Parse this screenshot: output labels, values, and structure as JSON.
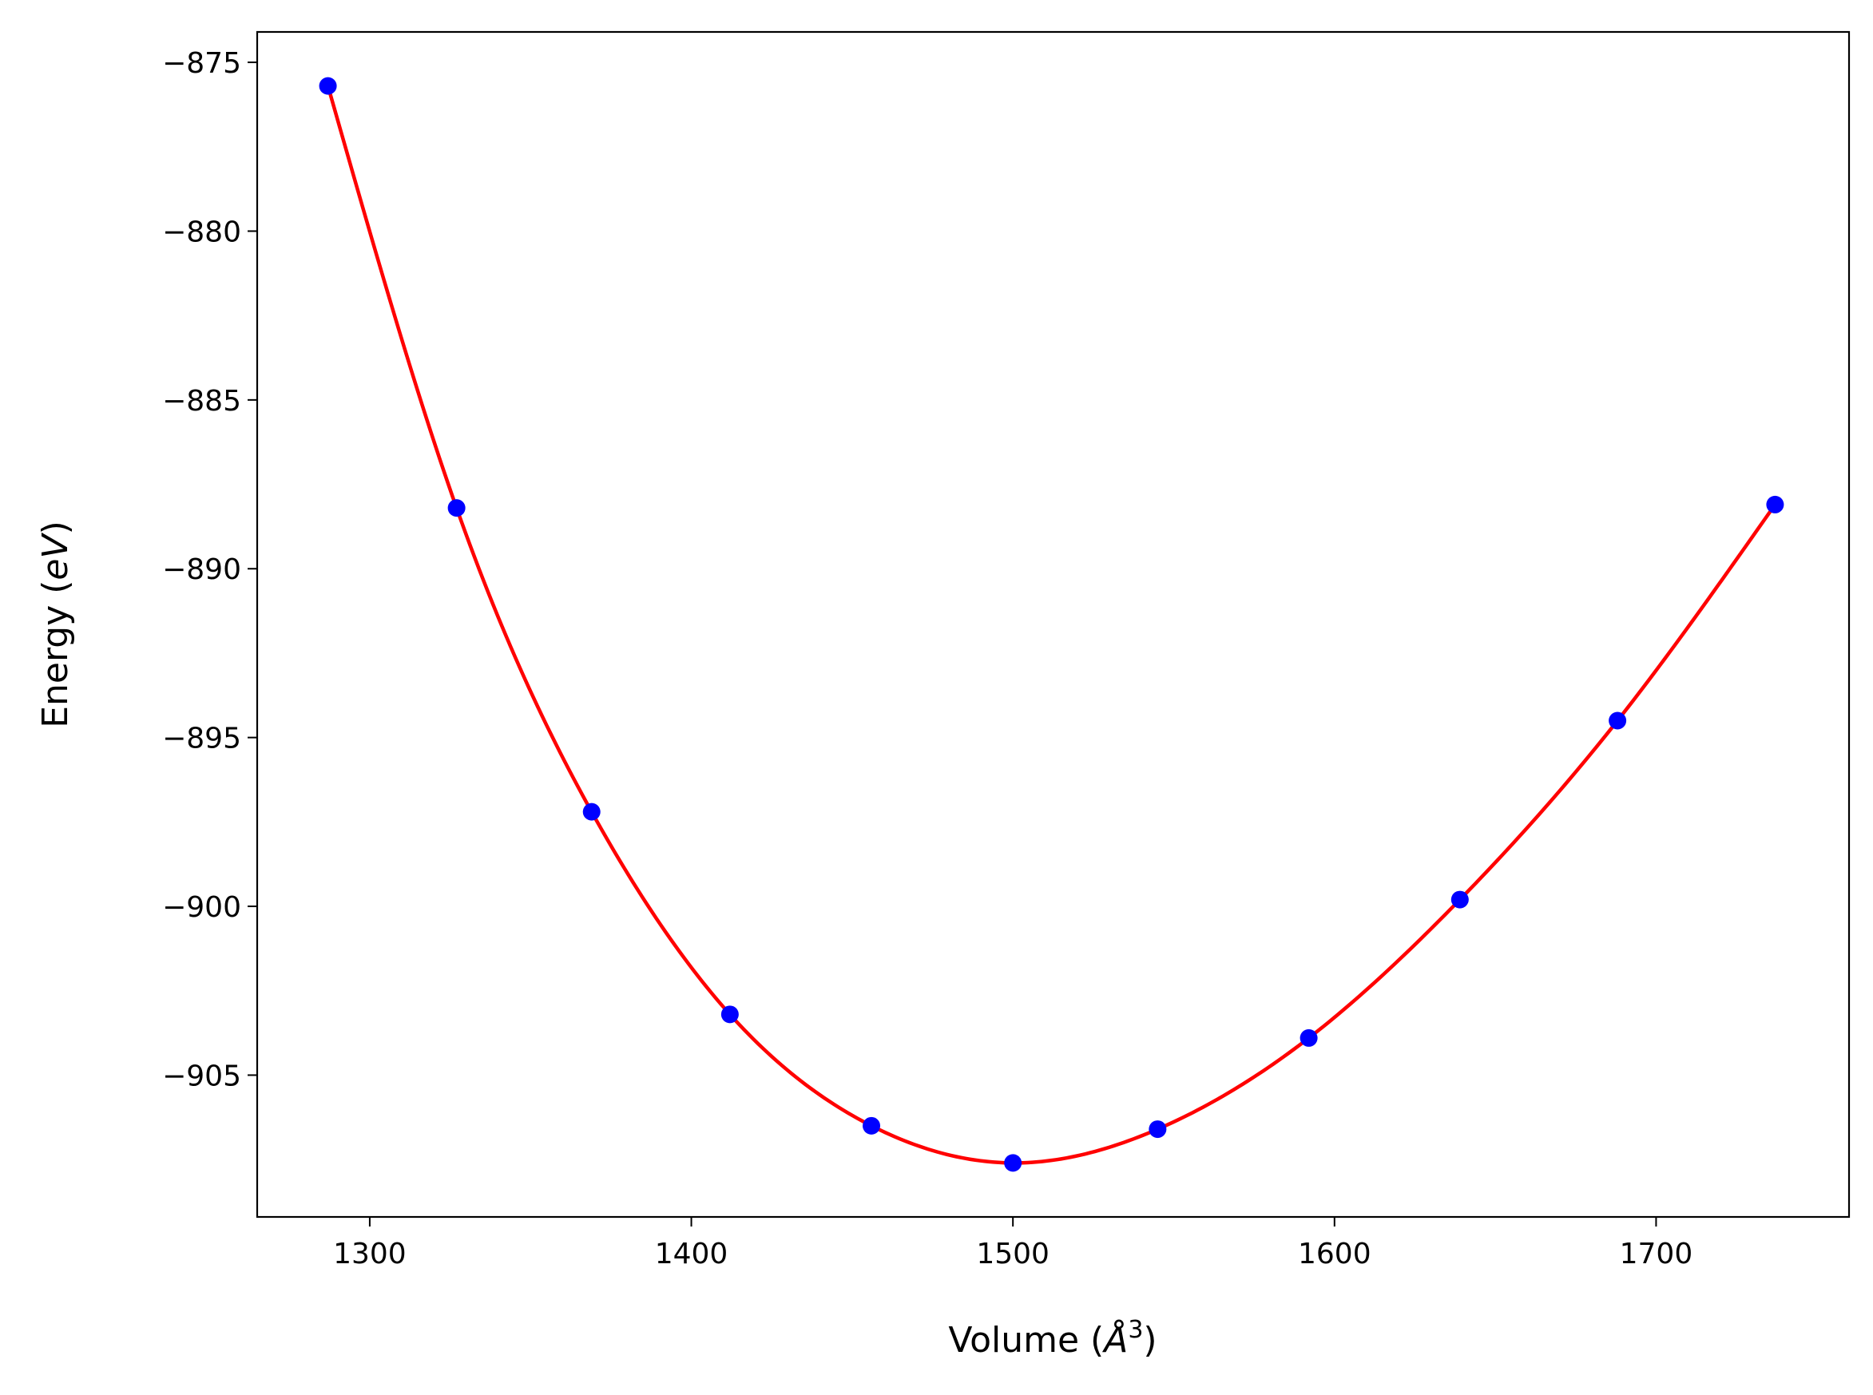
{
  "chart_data": {
    "type": "scatter",
    "title": "",
    "xlabel": {
      "pre": "Volume (",
      "var": "Å",
      "sup": "3",
      "post": ")"
    },
    "ylabel": {
      "pre": "Energy (",
      "var": "eV",
      "post": ")"
    },
    "xlim": [
      1265,
      1760
    ],
    "ylim": [
      -909.2,
      -874.1
    ],
    "xticks": [
      1300,
      1400,
      1500,
      1600,
      1700
    ],
    "xtick_labels": [
      "1300",
      "1400",
      "1500",
      "1600",
      "1700"
    ],
    "yticks": [
      -875,
      -880,
      -885,
      -890,
      -895,
      -900,
      -905
    ],
    "ytick_labels": [
      "−875",
      "−880",
      "−885",
      "−890",
      "−895",
      "−900",
      "−905"
    ],
    "grid": false,
    "series": [
      {
        "kind": "points",
        "color": "#0000ff",
        "x": [
          1287,
          1327,
          1369,
          1412,
          1456,
          1500,
          1545,
          1592,
          1639,
          1688,
          1737
        ],
        "y": [
          -875.7,
          -888.2,
          -897.2,
          -903.2,
          -906.5,
          -907.6,
          -906.6,
          -903.9,
          -899.8,
          -894.5,
          -888.1
        ]
      },
      {
        "kind": "curve",
        "color": "#ff0000",
        "x": [
          1287,
          1327,
          1369,
          1412,
          1456,
          1500,
          1545,
          1592,
          1639,
          1688,
          1737
        ],
        "y": [
          -875.7,
          -888.2,
          -897.2,
          -903.2,
          -906.5,
          -907.6,
          -906.6,
          -903.9,
          -899.8,
          -894.5,
          -888.1
        ]
      }
    ]
  }
}
